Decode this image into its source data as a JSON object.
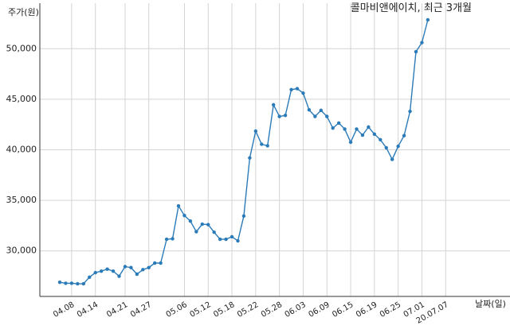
{
  "chart_data": {
    "type": "line",
    "title": "콜마비앤에이치, 최근 3개월",
    "ylabel": "주가(원)",
    "xlabel": "날짜(일)",
    "ylim": [
      25500,
      54500
    ],
    "yticks": [
      30000,
      35000,
      40000,
      45000,
      50000
    ],
    "ytick_labels": [
      "30,000",
      "35,000",
      "40,000",
      "45,000",
      "50,000"
    ],
    "xticks": [
      "04.08",
      "04.14",
      "04.21",
      "04.27",
      "05.06",
      "05.12",
      "05.18",
      "05.22",
      "05.28",
      "06.03",
      "06.09",
      "06.15",
      "06.19",
      "06.25",
      "07.01",
      "20.07.07"
    ],
    "xtick_index": [
      2,
      6,
      11,
      15,
      21,
      25,
      29,
      33,
      37,
      41,
      45,
      49,
      53,
      57,
      61,
      65
    ],
    "grid": true,
    "color": "#2b7bb9",
    "series": [
      {
        "values": [
          26900,
          26800,
          26800,
          26750,
          26750,
          27400,
          27850,
          28000,
          28200,
          28000,
          27500,
          28450,
          28350,
          27700,
          28150,
          28350,
          28800,
          28800,
          31150,
          31200,
          34450,
          33500,
          32950,
          31900,
          32650,
          32600,
          31850,
          31150,
          31150,
          31400,
          31000,
          33450,
          39200,
          41850,
          40550,
          40400,
          44450,
          43300,
          43400,
          45950,
          46050,
          45600,
          43950,
          43300,
          43900,
          43300,
          42150,
          42650,
          42050,
          40750,
          42050,
          41450,
          42250,
          41550,
          41000,
          40200,
          39050,
          40350,
          41400,
          43800,
          49700,
          50600,
          52850
        ]
      }
    ]
  }
}
